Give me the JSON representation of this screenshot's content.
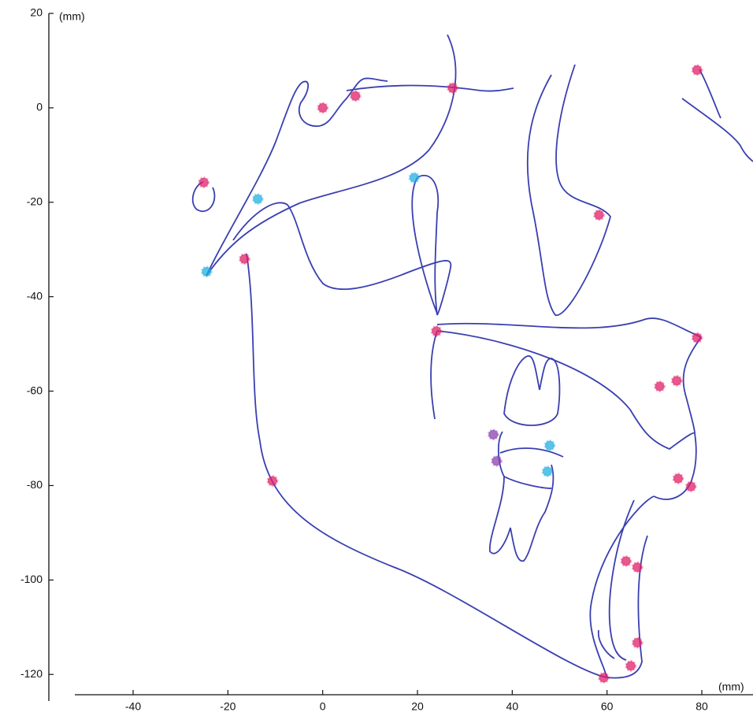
{
  "chart_data": {
    "type": "scatter",
    "x_label": "(mm)",
    "y_label": "(mm)",
    "xlim": [
      -52.3,
      90.8
    ],
    "ylim": [
      -124.3,
      20
    ],
    "xticks": [
      -40,
      -20,
      0,
      20,
      40,
      60,
      80
    ],
    "yticks": [
      20,
      0,
      -20,
      -40,
      -60,
      -80,
      -100,
      -120
    ],
    "series": [
      {
        "color": "#e0206a",
        "x": [
          0,
          6.9,
          27.4,
          79,
          -25.1,
          -16.5,
          24,
          58.3,
          79,
          71.1,
          74.7,
          -10.6,
          75,
          77.7,
          64,
          66.4,
          66.4,
          65,
          59.3
        ],
        "y": [
          0,
          2.5,
          4.2,
          8,
          -15.8,
          -32,
          -47.3,
          -22.7,
          -48.7,
          -59,
          -57.8,
          -79,
          -78.5,
          -80.2,
          -96,
          -97.3,
          -113.3,
          -118.2,
          -120.7
        ]
      },
      {
        "color": "#8a40b0",
        "x": [
          36,
          36.7
        ],
        "y": [
          -69.2,
          -74.8
        ]
      },
      {
        "color": "#22b0e0",
        "x": [
          -13.7,
          -24.5,
          19.3,
          47.9,
          47.4
        ],
        "y": [
          -19.3,
          -34.7,
          -14.8,
          -71.5,
          -77
        ]
      }
    ]
  }
}
